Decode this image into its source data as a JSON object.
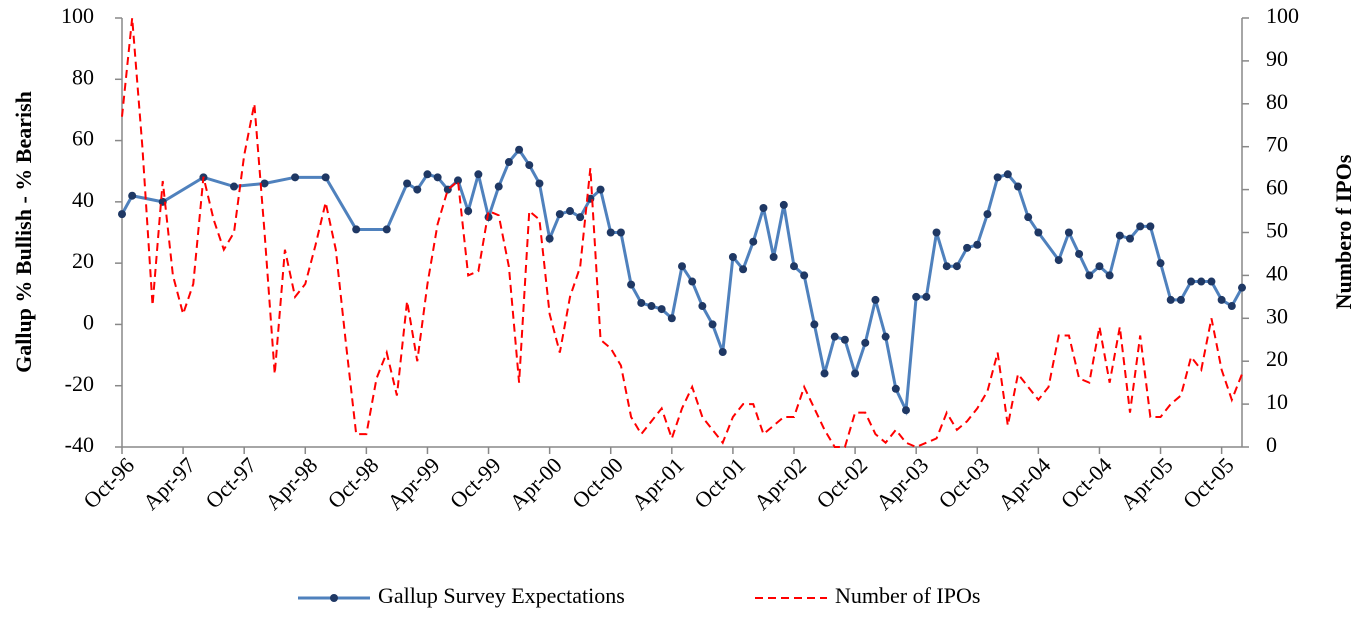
{
  "chart_data": {
    "type": "line",
    "y_label": "Gallup % Bullish - % Bearish",
    "y2_label": "Numbero f IPOs",
    "xlim": [
      "Oct-96",
      "Dec-05"
    ],
    "xticks": [
      "Oct-96",
      "Apr-97",
      "Oct-97",
      "Apr-98",
      "Oct-98",
      "Apr-99",
      "Oct-99",
      "Apr-00",
      "Oct-00",
      "Apr-01",
      "Oct-01",
      "Apr-02",
      "Oct-02",
      "Apr-03",
      "Oct-03",
      "Apr-04",
      "Oct-04",
      "Apr-05",
      "Oct-05"
    ],
    "ylim": [
      -40,
      100
    ],
    "yticks": [
      -40,
      -20,
      0,
      20,
      40,
      60,
      80,
      100
    ],
    "y2lim": [
      0,
      100
    ],
    "y2ticks": [
      0,
      10,
      20,
      30,
      40,
      50,
      60,
      70,
      80,
      90,
      100
    ],
    "grid": false,
    "legend": "bottom",
    "series": [
      {
        "name": "Gallup Survey Expectations",
        "color": "#4f81bd",
        "marker_color": "#1f3864",
        "style": "solid",
        "axis": "y",
        "x": [
          "Oct-96",
          "Nov-96",
          "Feb-97",
          "Jun-97",
          "Sep-97",
          "Dec-97",
          "Mar-98",
          "Jun-98",
          "Sep-98",
          "Dec-98",
          "Feb-99",
          "Mar-99",
          "Apr-99",
          "May-99",
          "Jun-99",
          "Jul-99",
          "Aug-99",
          "Sep-99",
          "Oct-99",
          "Nov-99",
          "Dec-99",
          "Jan-00",
          "Feb-00",
          "Mar-00",
          "Apr-00",
          "May-00",
          "Jun-00",
          "Jul-00",
          "Aug-00",
          "Sep-00",
          "Oct-00",
          "Nov-00",
          "Dec-00",
          "Jan-01",
          "Feb-01",
          "Mar-01",
          "Apr-01",
          "May-01",
          "Jun-01",
          "Jul-01",
          "Aug-01",
          "Sep-01",
          "Oct-01",
          "Nov-01",
          "Dec-01",
          "Jan-02",
          "Feb-02",
          "Mar-02",
          "Apr-02",
          "May-02",
          "Jun-02",
          "Jul-02",
          "Aug-02",
          "Sep-02",
          "Oct-02",
          "Nov-02",
          "Dec-02",
          "Jan-03",
          "Feb-03",
          "Mar-03",
          "Apr-03",
          "May-03",
          "Jun-03",
          "Jul-03",
          "Aug-03",
          "Sep-03",
          "Oct-03",
          "Nov-03",
          "Dec-03",
          "Jan-04",
          "Feb-04",
          "Mar-04",
          "Apr-04",
          "Jun-04",
          "Jul-04",
          "Aug-04",
          "Sep-04",
          "Oct-04",
          "Nov-04",
          "Dec-04",
          "Jan-05",
          "Feb-05",
          "Mar-05",
          "Apr-05",
          "May-05",
          "Jun-05",
          "Jul-05",
          "Aug-05",
          "Sep-05",
          "Oct-05",
          "Nov-05",
          "Dec-05"
        ],
        "values": [
          36,
          42,
          40,
          48,
          45,
          46,
          48,
          48,
          31,
          31,
          46,
          44,
          49,
          48,
          44,
          47,
          37,
          49,
          35,
          45,
          53,
          57,
          52,
          46,
          28,
          36,
          37,
          35,
          41,
          44,
          30,
          30,
          13,
          7,
          6,
          5,
          2,
          19,
          14,
          6,
          0,
          -9,
          22,
          18,
          27,
          38,
          22,
          39,
          19,
          16,
          0,
          -16,
          -4,
          -5,
          -16,
          -6,
          8,
          -4,
          -21,
          -28,
          9,
          9,
          30,
          19,
          19,
          25,
          26,
          36,
          48,
          49,
          45,
          35,
          30,
          21,
          30,
          23,
          16,
          19,
          16,
          29,
          28,
          32,
          32,
          20,
          8,
          8,
          14,
          14,
          14,
          8,
          6,
          12
        ]
      },
      {
        "name": "Number of IPOs",
        "color": "#ff0000",
        "style": "dashed",
        "axis": "y2",
        "x": [
          "Oct-96",
          "Nov-96",
          "Dec-96",
          "Jan-97",
          "Feb-97",
          "Mar-97",
          "Apr-97",
          "May-97",
          "Jun-97",
          "Jul-97",
          "Aug-97",
          "Sep-97",
          "Oct-97",
          "Nov-97",
          "Dec-97",
          "Jan-98",
          "Feb-98",
          "Mar-98",
          "Apr-98",
          "May-98",
          "Jun-98",
          "Jul-98",
          "Aug-98",
          "Sep-98",
          "Oct-98",
          "Nov-98",
          "Dec-98",
          "Jan-99",
          "Feb-99",
          "Mar-99",
          "Apr-99",
          "May-99",
          "Jun-99",
          "Jul-99",
          "Aug-99",
          "Sep-99",
          "Oct-99",
          "Nov-99",
          "Dec-99",
          "Jan-00",
          "Feb-00",
          "Mar-00",
          "Apr-00",
          "May-00",
          "Jun-00",
          "Jul-00",
          "Aug-00",
          "Sep-00",
          "Oct-00",
          "Nov-00",
          "Dec-00",
          "Jan-01",
          "Feb-01",
          "Mar-01",
          "Apr-01",
          "May-01",
          "Jun-01",
          "Jul-01",
          "Aug-01",
          "Sep-01",
          "Oct-01",
          "Nov-01",
          "Dec-01",
          "Jan-02",
          "Feb-02",
          "Mar-02",
          "Apr-02",
          "May-02",
          "Jun-02",
          "Jul-02",
          "Aug-02",
          "Sep-02",
          "Oct-02",
          "Nov-02",
          "Dec-02",
          "Jan-03",
          "Feb-03",
          "Mar-03",
          "Apr-03",
          "May-03",
          "Jun-03",
          "Jul-03",
          "Aug-03",
          "Sep-03",
          "Oct-03",
          "Nov-03",
          "Dec-03",
          "Jan-04",
          "Feb-04",
          "Mar-04",
          "Apr-04",
          "May-04",
          "Jun-04",
          "Jul-04",
          "Aug-04",
          "Sep-04",
          "Oct-04",
          "Nov-04",
          "Dec-04",
          "Jan-05",
          "Feb-05",
          "Mar-05",
          "Apr-05",
          "May-05",
          "Jun-05",
          "Jul-05",
          "Aug-05",
          "Sep-05",
          "Oct-05",
          "Nov-05",
          "Dec-05"
        ],
        "values": [
          77,
          100,
          70,
          33,
          62,
          40,
          31,
          38,
          63,
          53,
          46,
          50,
          68,
          80,
          50,
          17,
          46,
          35,
          38,
          47,
          57,
          46,
          24,
          3,
          3,
          16,
          22,
          12,
          34,
          20,
          38,
          52,
          60,
          62,
          40,
          41,
          55,
          54,
          42,
          15,
          55,
          53,
          31,
          22,
          35,
          42,
          65,
          25,
          23,
          19,
          7,
          3,
          6,
          9,
          2,
          9,
          14,
          7,
          4,
          1,
          7,
          10,
          10,
          3,
          5,
          7,
          7,
          14,
          9,
          4,
          0,
          0,
          8,
          8,
          3,
          1,
          4,
          1,
          0,
          1,
          2,
          8,
          4,
          6,
          9,
          13,
          22,
          5,
          17,
          14,
          11,
          14,
          26,
          26,
          16,
          15,
          28,
          15,
          28,
          8,
          26,
          7,
          7,
          10,
          12,
          21,
          18,
          30,
          18,
          11,
          17
        ]
      }
    ]
  }
}
